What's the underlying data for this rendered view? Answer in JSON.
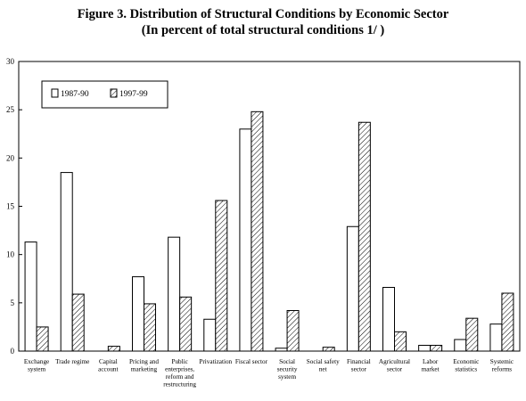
{
  "figure": {
    "title": "Figure 3.  Distribution of Structural Conditions by Economic Sector",
    "subtitle": "(In percent of total structural conditions  1/ )"
  },
  "chart_data": {
    "type": "bar",
    "title": "Figure 3.  Distribution of Structural Conditions by Economic Sector",
    "subtitle": "(In percent of total structural conditions  1/ )",
    "categories": [
      [
        "Exchange",
        "system"
      ],
      [
        "Trade regime"
      ],
      [
        "Capital",
        "account"
      ],
      [
        "Pricing and",
        "marketing"
      ],
      [
        "Public",
        "enterprises,",
        "reform and",
        "restructuring"
      ],
      [
        "Privatization"
      ],
      [
        "Fiscal sector"
      ],
      [
        "Social",
        "security",
        "system"
      ],
      [
        "Social safety",
        "net"
      ],
      [
        "Financial",
        "sector"
      ],
      [
        "Agricultural",
        "sector"
      ],
      [
        "Labor",
        "market"
      ],
      [
        "Economic",
        "statistics"
      ],
      [
        "Systemic",
        "reforms"
      ]
    ],
    "series": [
      {
        "name": "1987-90",
        "fill": "white",
        "values": [
          11.3,
          18.5,
          0,
          7.7,
          11.8,
          3.3,
          23.0,
          0.3,
          0,
          12.9,
          6.6,
          0.6,
          1.2,
          2.8
        ]
      },
      {
        "name": "1997-99",
        "fill": "hatched",
        "values": [
          2.5,
          5.9,
          0.5,
          4.9,
          5.6,
          15.6,
          24.8,
          4.2,
          0.4,
          23.7,
          2.0,
          0.6,
          3.4,
          6.0
        ]
      }
    ],
    "ylim": [
      0,
      30
    ],
    "yticks": [
      0,
      5,
      10,
      15,
      20,
      25,
      30
    ],
    "legend_position": "top-left",
    "grid": false
  }
}
